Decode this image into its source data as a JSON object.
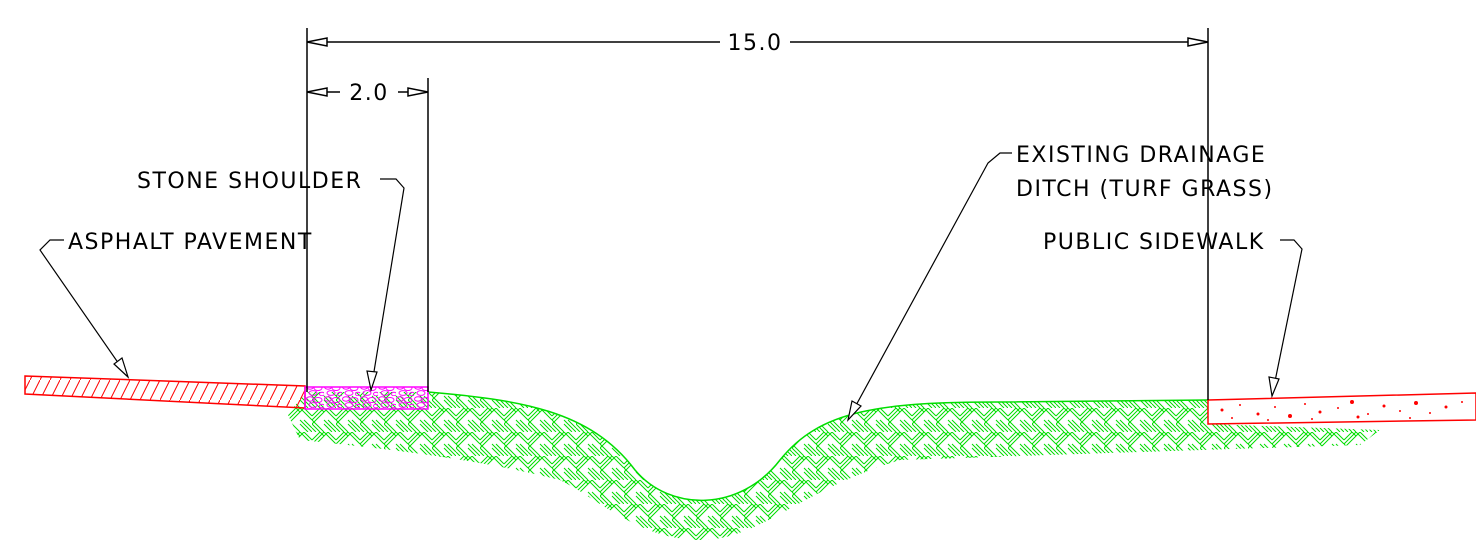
{
  "dimensions": {
    "overall_width": "15.0",
    "shoulder_width": "2.0"
  },
  "labels": {
    "asphalt": "ASPHALT PAVEMENT",
    "stone_shoulder": "STONE SHOULDER",
    "drainage_line1": "EXISTING DRAINAGE",
    "drainage_line2": "DITCH (TURF GRASS)",
    "sidewalk": "PUBLIC SIDEWALK"
  },
  "colors": {
    "asphalt": "#ff0000",
    "stone": "#ff00ff",
    "turf": "#00dd00",
    "sidewalk": "#ff0000",
    "linework": "#000000"
  }
}
